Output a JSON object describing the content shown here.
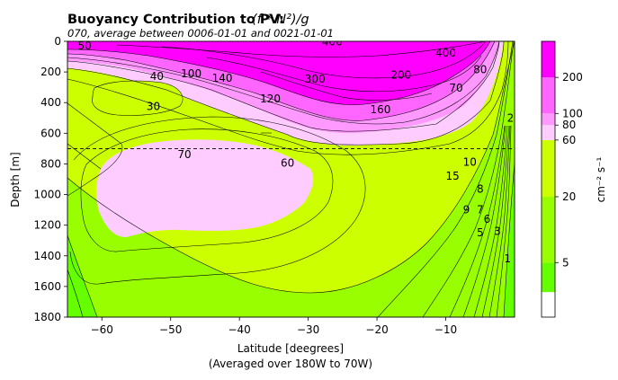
{
  "chart_data": {
    "type": "heatmap",
    "title": "Buoyancy Contribution to PV:",
    "title_math": "(f * N²)/g",
    "subtitle": "070, average between 0006-01-01 and 0021-01-01",
    "xlabel": "Latitude [deegrees]",
    "xlabel_note": "(Averaged over 180W to 70W)",
    "ylabel": "Depth [m]",
    "xlim": [
      -65,
      0
    ],
    "ylim": [
      1800,
      0
    ],
    "x_ticks": [
      -60,
      -50,
      -40,
      -30,
      -20,
      -10
    ],
    "y_ticks": [
      0,
      200,
      400,
      600,
      800,
      1000,
      1200,
      1400,
      1600,
      1800
    ],
    "reference_depth": 700,
    "colorbar": {
      "label": "cm⁻² s⁻¹",
      "bounds": [
        0,
        2,
        5,
        20,
        60,
        80,
        100,
        200,
        400
      ],
      "colors": [
        "#ffffff",
        "#66ff00",
        "#99ff00",
        "#ccff00",
        "#ffccff",
        "#ff99ff",
        "#ff66ff",
        "#ff00ff"
      ],
      "tick_labels": [
        "5",
        "20",
        "60",
        "80",
        "100",
        "200"
      ],
      "tick_values": [
        5,
        20,
        60,
        80,
        100,
        200
      ]
    },
    "contour_labels": [
      {
        "text": "400",
        "lat": -26.5,
        "depth": 2
      },
      {
        "text": "50",
        "lat": -62.5,
        "depth": 28
      },
      {
        "text": "400",
        "lat": -10,
        "depth": 75
      },
      {
        "text": "40",
        "lat": -52,
        "depth": 230
      },
      {
        "text": "100",
        "lat": -47,
        "depth": 210
      },
      {
        "text": "140",
        "lat": -42.5,
        "depth": 240
      },
      {
        "text": "300",
        "lat": -29,
        "depth": 245
      },
      {
        "text": "200",
        "lat": -16.5,
        "depth": 220
      },
      {
        "text": "80",
        "lat": -5,
        "depth": 185
      },
      {
        "text": "70",
        "lat": -8.5,
        "depth": 305
      },
      {
        "text": "30",
        "lat": -52.5,
        "depth": 425
      },
      {
        "text": "120",
        "lat": -35.5,
        "depth": 375
      },
      {
        "text": "160",
        "lat": -19.5,
        "depth": 445
      },
      {
        "text": "2",
        "lat": -0.6,
        "depth": 500
      },
      {
        "text": "70",
        "lat": -48,
        "depth": 740
      },
      {
        "text": "60",
        "lat": -33,
        "depth": 795
      },
      {
        "text": "10",
        "lat": -6.5,
        "depth": 790
      },
      {
        "text": "15",
        "lat": -9,
        "depth": 880
      },
      {
        "text": "8",
        "lat": -5,
        "depth": 965
      },
      {
        "text": "9",
        "lat": -7,
        "depth": 1100
      },
      {
        "text": "7",
        "lat": -5,
        "depth": 1100
      },
      {
        "text": "6",
        "lat": -4,
        "depth": 1160
      },
      {
        "text": "5",
        "lat": -5,
        "depth": 1250
      },
      {
        "text": "3",
        "lat": -2.5,
        "depth": 1240
      },
      {
        "text": "1",
        "lat": -1,
        "depth": 1420
      }
    ]
  }
}
